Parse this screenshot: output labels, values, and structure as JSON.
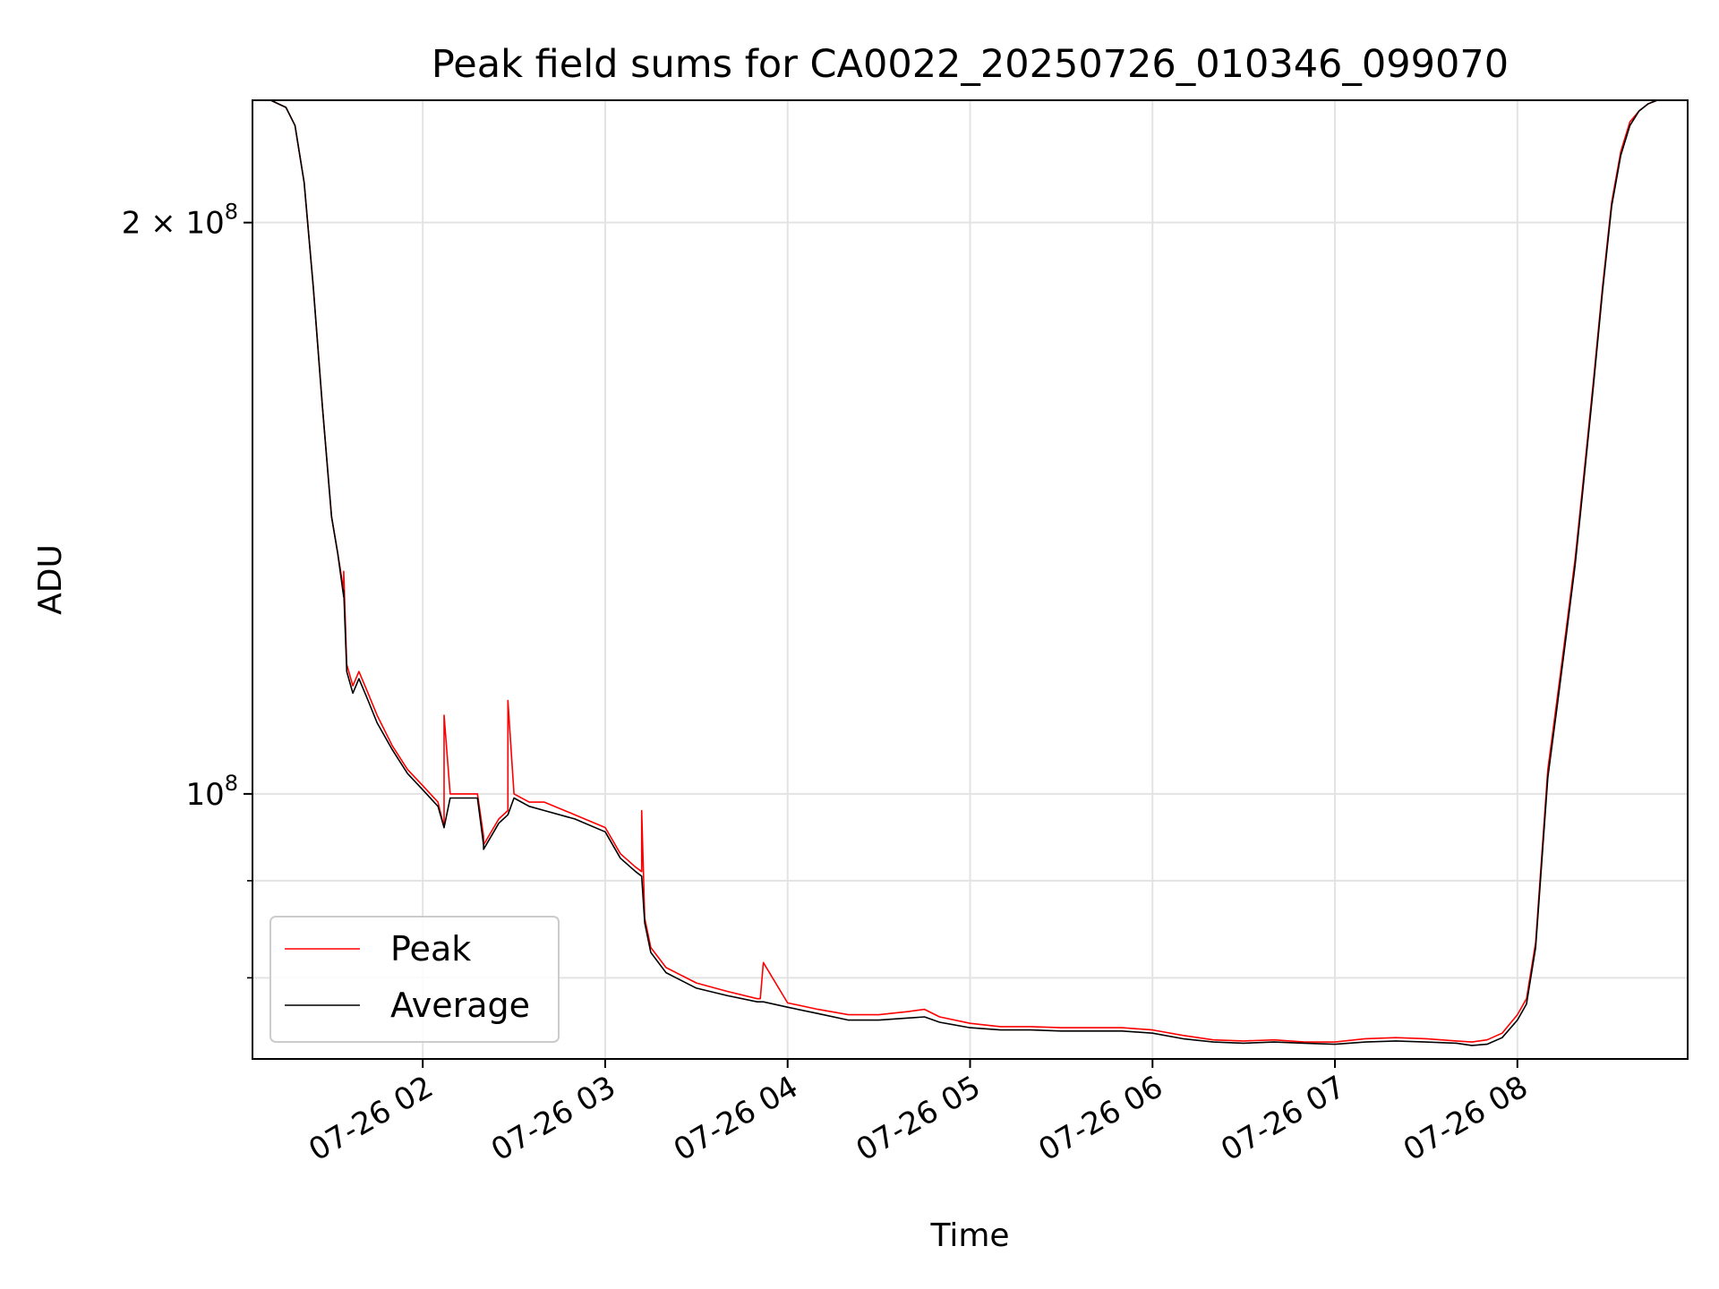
{
  "chart_data": {
    "type": "line",
    "title": "Peak field sums for CA0022_20250726_010346_099070",
    "xlabel": "Time",
    "ylabel": "ADU",
    "yscale": "log",
    "grid": true,
    "legend_position": "lower-left",
    "xlim": [
      "2025-07-26 01:04",
      "2025-07-26 08:56"
    ],
    "ylim": [
      72500000,
      232000000
    ],
    "x_ticks": [
      {
        "time": "2025-07-26 02:00",
        "label": "07-26 02"
      },
      {
        "time": "2025-07-26 03:00",
        "label": "07-26 03"
      },
      {
        "time": "2025-07-26 04:00",
        "label": "07-26 04"
      },
      {
        "time": "2025-07-26 05:00",
        "label": "07-26 05"
      },
      {
        "time": "2025-07-26 06:00",
        "label": "07-26 06"
      },
      {
        "time": "2025-07-26 07:00",
        "label": "07-26 07"
      },
      {
        "time": "2025-07-26 08:00",
        "label": "07-26 08"
      }
    ],
    "y_ticks": [
      {
        "value": 100000000,
        "base": "10",
        "exp": "8"
      },
      {
        "value": 200000000,
        "coef": "2",
        "base": "10",
        "exp": "8"
      }
    ],
    "y_minor_ticks": [
      80000000,
      90000000
    ],
    "series": [
      {
        "name": "Peak",
        "color": "#ff0000",
        "x": [
          "01:04",
          "01:10",
          "01:15",
          "01:18",
          "01:21",
          "01:24",
          "01:27",
          "01:30",
          "01:32",
          "01:34",
          "01:34",
          "01:35",
          "01:37",
          "01:39",
          "01:42",
          "01:45",
          "01:50",
          "01:55",
          "02:00",
          "02:05",
          "02:07",
          "02:07",
          "02:09",
          "02:10",
          "02:15",
          "02:18",
          "02:20",
          "02:20",
          "02:25",
          "02:28",
          "02:28",
          "02:30",
          "02:35",
          "02:40",
          "02:50",
          "03:00",
          "03:05",
          "03:10",
          "03:12",
          "03:12",
          "03:13",
          "03:15",
          "03:20",
          "03:30",
          "03:40",
          "03:50",
          "03:51",
          "03:52",
          "04:00",
          "04:10",
          "04:20",
          "04:30",
          "04:40",
          "04:45",
          "04:50",
          "05:00",
          "05:10",
          "05:20",
          "05:30",
          "05:40",
          "05:50",
          "06:00",
          "06:10",
          "06:20",
          "06:30",
          "06:40",
          "06:50",
          "07:00",
          "07:10",
          "07:20",
          "07:30",
          "07:40",
          "07:45",
          "07:50",
          "07:55",
          "08:00",
          "08:03",
          "08:06",
          "08:10",
          "08:13",
          "08:16",
          "08:19",
          "08:22",
          "08:25",
          "08:28",
          "08:31",
          "08:34",
          "08:37",
          "08:40",
          "08:43",
          "08:46",
          "08:49",
          "08:52",
          "08:56"
        ],
        "y": [
          232000000,
          232000000,
          230000000,
          225000000,
          210000000,
          185000000,
          160000000,
          140000000,
          134000000,
          128000000,
          131000000,
          117000000,
          114000000,
          116000000,
          113000000,
          110000000,
          106000000,
          103000000,
          101000000,
          99000000,
          96000000,
          110000000,
          100000000,
          100000000,
          100000000,
          100000000,
          95000000,
          94000000,
          97000000,
          98000000,
          112000000,
          100000000,
          99000000,
          99000000,
          97500000,
          96000000,
          93000000,
          91500000,
          91000000,
          98000000,
          86000000,
          83000000,
          81000000,
          79500000,
          78700000,
          78000000,
          78000000,
          81500000,
          77600000,
          77000000,
          76500000,
          76500000,
          76800000,
          77000000,
          76300000,
          75700000,
          75400000,
          75400000,
          75300000,
          75300000,
          75300000,
          75100000,
          74600000,
          74200000,
          74100000,
          74200000,
          74000000,
          74000000,
          74300000,
          74400000,
          74300000,
          74100000,
          74000000,
          74200000,
          74800000,
          76500000,
          78000000,
          83500000,
          103000000,
          112000000,
          122000000,
          133000000,
          148000000,
          165000000,
          185000000,
          205000000,
          218000000,
          226000000,
          229000000,
          231000000,
          232000000,
          232000000,
          232000000,
          232000000
        ]
      },
      {
        "name": "Average",
        "color": "#000000",
        "x": [
          "01:04",
          "01:10",
          "01:15",
          "01:18",
          "01:21",
          "01:24",
          "01:27",
          "01:30",
          "01:32",
          "01:34",
          "01:34",
          "01:35",
          "01:37",
          "01:39",
          "01:42",
          "01:45",
          "01:50",
          "01:55",
          "02:00",
          "02:05",
          "02:07",
          "02:07",
          "02:09",
          "02:10",
          "02:15",
          "02:18",
          "02:20",
          "02:20",
          "02:25",
          "02:28",
          "02:28",
          "02:30",
          "02:35",
          "02:40",
          "02:50",
          "03:00",
          "03:05",
          "03:10",
          "03:12",
          "03:12",
          "03:13",
          "03:15",
          "03:20",
          "03:30",
          "03:40",
          "03:50",
          "03:51",
          "03:52",
          "04:00",
          "04:10",
          "04:20",
          "04:30",
          "04:40",
          "04:45",
          "04:50",
          "05:00",
          "05:10",
          "05:20",
          "05:30",
          "05:40",
          "05:50",
          "06:00",
          "06:10",
          "06:20",
          "06:30",
          "06:40",
          "06:50",
          "07:00",
          "07:10",
          "07:20",
          "07:30",
          "07:40",
          "07:45",
          "07:50",
          "07:55",
          "08:00",
          "08:03",
          "08:06",
          "08:10",
          "08:13",
          "08:16",
          "08:19",
          "08:22",
          "08:25",
          "08:28",
          "08:31",
          "08:34",
          "08:37",
          "08:40",
          "08:43",
          "08:46",
          "08:49",
          "08:52",
          "08:56"
        ],
        "y": [
          232000000,
          232000000,
          230000000,
          225000000,
          210000000,
          185000000,
          160000000,
          140000000,
          134000000,
          127000000,
          128000000,
          116000000,
          113000000,
          115000000,
          112000000,
          109000000,
          105500000,
          102500000,
          100500000,
          98500000,
          96000000,
          96000000,
          99500000,
          99500000,
          99500000,
          99500000,
          94000000,
          93500000,
          96500000,
          97500000,
          97500000,
          99500000,
          98500000,
          98000000,
          97000000,
          95500000,
          92500000,
          91000000,
          90500000,
          90500000,
          85500000,
          82500000,
          80500000,
          79000000,
          78300000,
          77700000,
          77700000,
          77700000,
          77200000,
          76600000,
          76000000,
          76000000,
          76200000,
          76300000,
          75800000,
          75300000,
          75100000,
          75100000,
          75000000,
          75000000,
          75000000,
          74800000,
          74300000,
          74000000,
          73900000,
          74000000,
          73900000,
          73800000,
          74000000,
          74100000,
          74000000,
          73900000,
          73700000,
          73800000,
          74400000,
          76000000,
          77500000,
          83000000,
          102000000,
          111000000,
          121000000,
          132000000,
          147000000,
          164000000,
          184000000,
          204000000,
          217000000,
          225000000,
          229000000,
          231000000,
          232000000,
          232000000,
          232000000,
          232000000
        ]
      }
    ]
  }
}
